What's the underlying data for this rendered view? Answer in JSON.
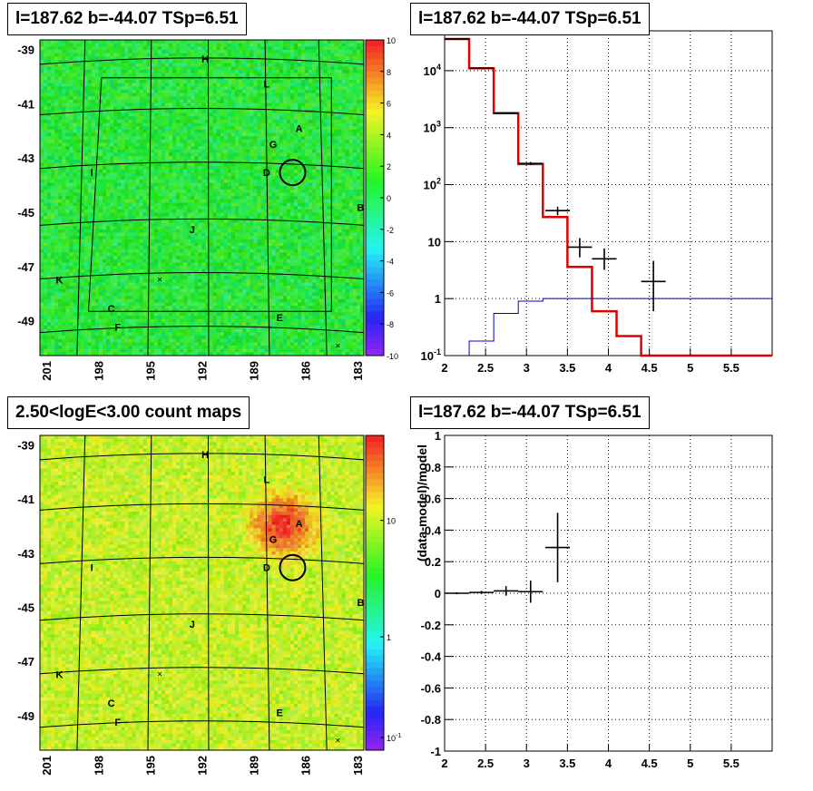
{
  "panels": {
    "top_left_title": "l=187.62 b=-44.07 TSp=6.51",
    "top_right_title": "l=187.62 b=-44.07 TSp=6.51",
    "bottom_left_title": "2.50<logE<3.00 count maps",
    "bottom_right_title": "l=187.62 b=-44.07 TSp=6.51"
  },
  "chart_data": [
    {
      "type": "heatmap",
      "name": "TS residual map",
      "x_ticks": [
        "201",
        "198",
        "195",
        "192",
        "189",
        "186",
        "183"
      ],
      "y_ticks": [
        "-39",
        "-41",
        "-43",
        "-45",
        "-47",
        "-49"
      ],
      "colorbar_ticks": [
        "10",
        "8",
        "6",
        "4",
        "2",
        "0",
        "-2",
        "-4",
        "-6",
        "-8",
        "-10"
      ],
      "colorbar_range": [
        -10,
        10
      ],
      "source_labels": [
        "H",
        "L",
        "A",
        "G",
        "D",
        "I",
        "B",
        "J",
        "K",
        "C",
        "F",
        "E"
      ]
    },
    {
      "type": "line",
      "name": "spectrum",
      "x_ticks": [
        "2",
        "2.5",
        "3",
        "3.5",
        "4",
        "4.5",
        "5",
        "5.5"
      ],
      "y_ticks": [
        "10^-1",
        "1",
        "10",
        "10^2",
        "10^3",
        "10^4"
      ],
      "y_log": true,
      "xlim": [
        2.0,
        6.0
      ],
      "ylim": [
        0.1,
        50000
      ],
      "model_total_red": {
        "bin_edges": [
          2.0,
          2.3,
          2.6,
          2.9,
          3.2,
          3.5,
          3.8,
          4.1,
          4.4,
          6.0
        ],
        "values": [
          36000,
          11000,
          1800,
          230,
          27,
          3.6,
          0.6,
          0.22,
          0.1
        ]
      },
      "source_model_blue": {
        "bin_edges": [
          2.3,
          2.6,
          2.9,
          3.2,
          6.0
        ],
        "values": [
          0.18,
          0.55,
          0.9,
          1.0
        ]
      },
      "data_points": [
        {
          "x": 2.15,
          "y": 36000,
          "xerr": 0.15,
          "ylo": 35000,
          "yhi": 37000
        },
        {
          "x": 2.45,
          "y": 11000,
          "xerr": 0.15,
          "ylo": 10700,
          "yhi": 11300
        },
        {
          "x": 2.75,
          "y": 1800,
          "xerr": 0.15,
          "ylo": 1740,
          "yhi": 1860
        },
        {
          "x": 3.05,
          "y": 235,
          "xerr": 0.15,
          "ylo": 220,
          "yhi": 250
        },
        {
          "x": 3.38,
          "y": 35,
          "xerr": 0.15,
          "ylo": 29,
          "yhi": 41
        },
        {
          "x": 3.65,
          "y": 8,
          "xerr": 0.15,
          "ylo": 5.3,
          "yhi": 11.5
        },
        {
          "x": 3.95,
          "y": 5,
          "xerr": 0.15,
          "ylo": 3.2,
          "yhi": 7.6
        },
        {
          "x": 4.55,
          "y": 2,
          "xerr": 0.15,
          "ylo": 0.6,
          "yhi": 4.6
        }
      ]
    },
    {
      "type": "heatmap",
      "name": "count map",
      "x_ticks": [
        "201",
        "198",
        "195",
        "192",
        "189",
        "186",
        "183"
      ],
      "y_ticks": [
        "-39",
        "-41",
        "-43",
        "-45",
        "-47",
        "-49"
      ],
      "colorbar_ticks": [
        "10",
        "1",
        "10^-1"
      ],
      "colorbar_log": true,
      "source_labels": [
        "H",
        "L",
        "A",
        "G",
        "D",
        "I",
        "B",
        "J",
        "K",
        "C",
        "F",
        "E"
      ]
    },
    {
      "type": "scatter",
      "name": "residuals",
      "ylabel": "(data-model)/model",
      "x_ticks": [
        "2",
        "2.5",
        "3",
        "3.5",
        "4",
        "4.5",
        "5",
        "5.5"
      ],
      "y_ticks": [
        "1",
        "0.8",
        "0.6",
        "0.4",
        "0.2",
        "0",
        "-0.2",
        "-0.4",
        "-0.6",
        "-0.8",
        "-1"
      ],
      "xlim": [
        2.0,
        6.0
      ],
      "ylim": [
        -1.0,
        1.0
      ],
      "points": [
        {
          "x": 2.15,
          "y": 0.0,
          "xerr": 0.15,
          "yerr": 0.006
        },
        {
          "x": 2.45,
          "y": 0.005,
          "xerr": 0.15,
          "yerr": 0.01
        },
        {
          "x": 2.75,
          "y": 0.015,
          "xerr": 0.15,
          "yerr": 0.03
        },
        {
          "x": 3.05,
          "y": 0.01,
          "xerr": 0.15,
          "yerr": 0.07
        },
        {
          "x": 3.38,
          "y": 0.29,
          "xerr": 0.15,
          "yerr": 0.22
        }
      ]
    }
  ]
}
